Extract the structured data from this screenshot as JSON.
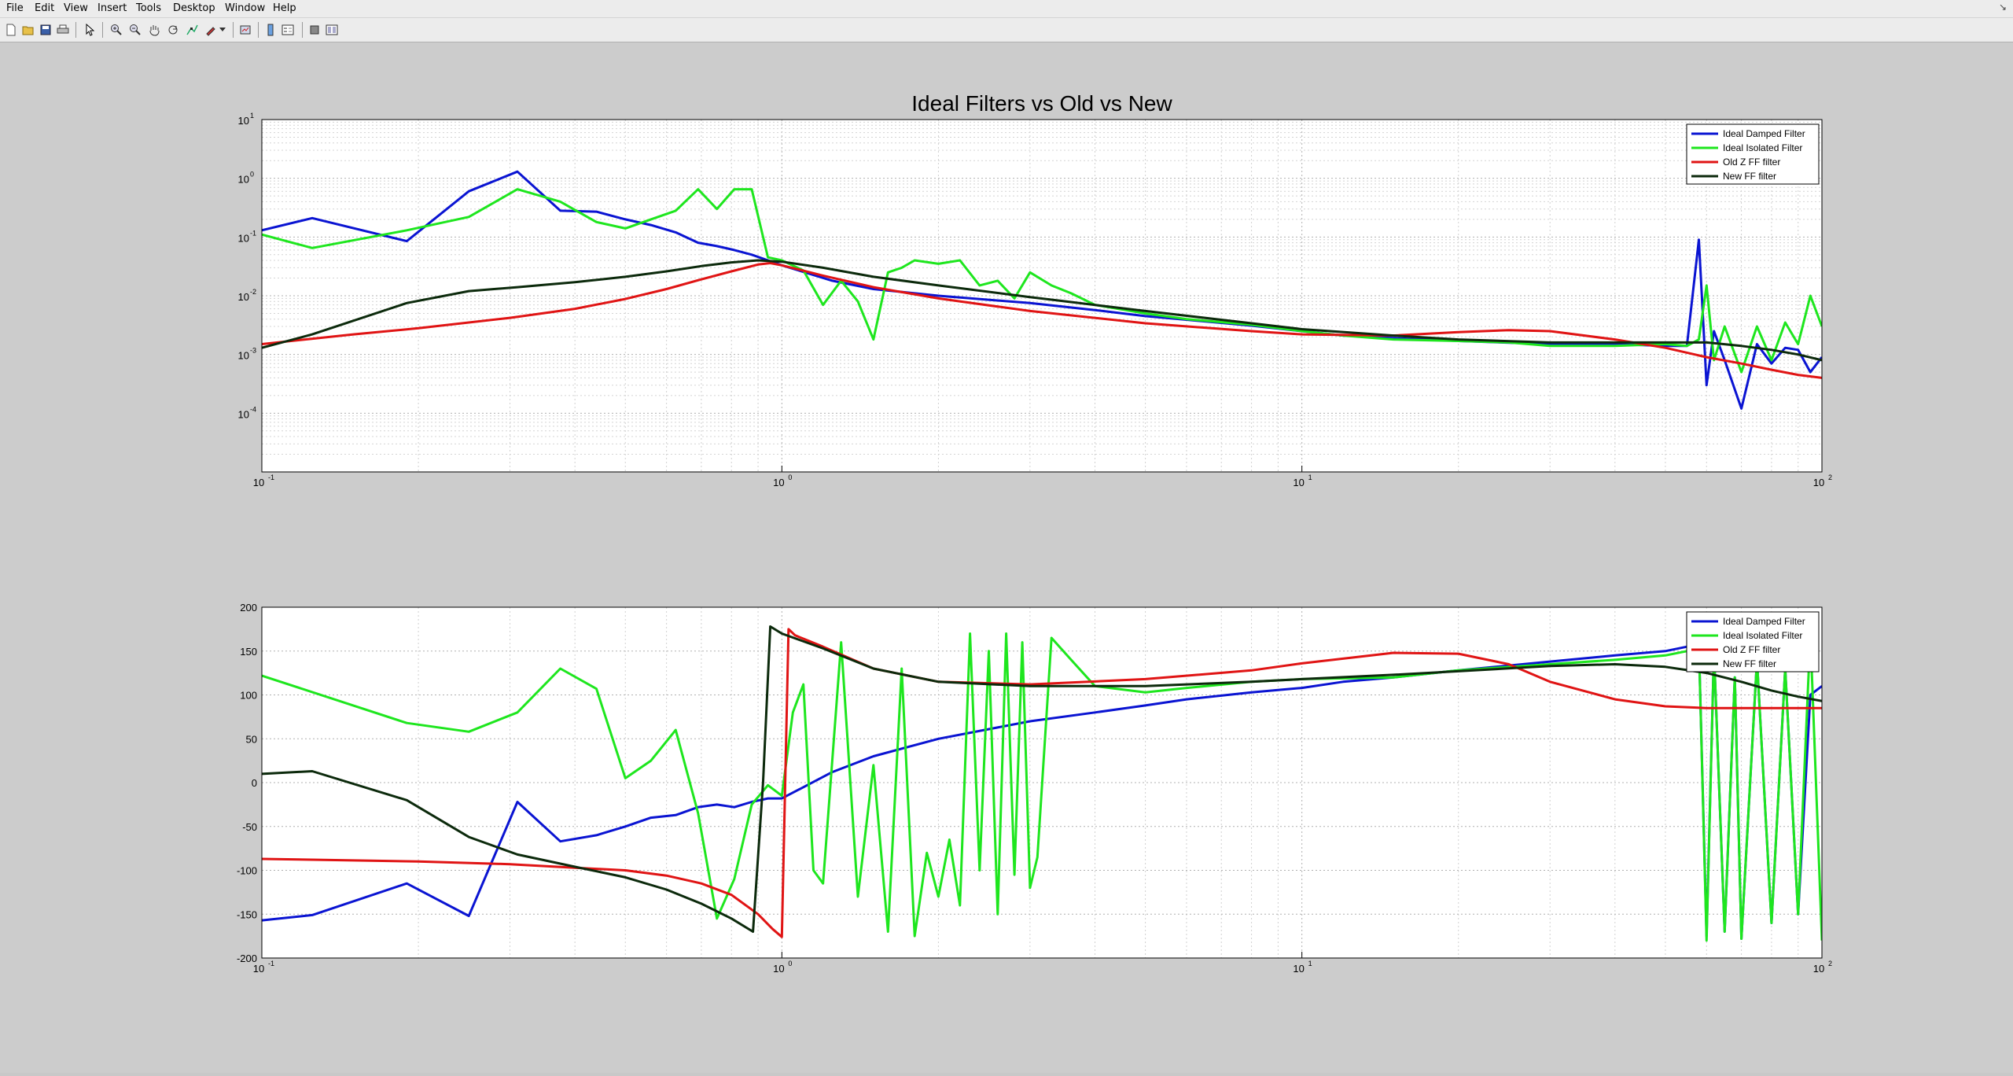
{
  "menubar": {
    "items": [
      "File",
      "Edit",
      "View",
      "Insert",
      "Tools",
      "Desktop",
      "Window",
      "Help"
    ],
    "undock_symbol": "↘"
  },
  "toolbar": {
    "icons": [
      "new-figure-icon",
      "open-file-icon",
      "save-icon",
      "print-icon",
      "select-arrow-icon",
      "zoom-in-icon",
      "zoom-out-icon",
      "pan-hand-icon",
      "rotate-3d-icon",
      "data-cursor-icon",
      "brush-icon",
      "brush-dropdown-icon",
      "link-plot-icon",
      "colorbar-icon",
      "legend-icon",
      "hide-plot-tools-icon",
      "show-plot-tools-icon"
    ]
  },
  "figure": {
    "title": "Ideal Filters vs Old vs New"
  },
  "colors": {
    "ideal_damped": "#0a14d2",
    "ideal_isolated": "#1ee61e",
    "old_z": "#e01414",
    "new_ff": "#0c2a0c"
  },
  "chart_data": [
    {
      "type": "line",
      "xscale": "log",
      "yscale": "log",
      "xlim": [
        0.1,
        100
      ],
      "ylim": [
        1e-05,
        10
      ],
      "grid": true,
      "legend_position": "top-right",
      "xticks": [
        {
          "base": "10",
          "exp": "-1"
        },
        {
          "base": "10",
          "exp": "0"
        },
        {
          "base": "10",
          "exp": "1"
        },
        {
          "base": "10",
          "exp": "2"
        }
      ],
      "yticks": [
        {
          "base": "10",
          "exp": "1"
        },
        {
          "base": "10",
          "exp": "0"
        },
        {
          "base": "10",
          "exp": "-1"
        },
        {
          "base": "10",
          "exp": "-2"
        },
        {
          "base": "10",
          "exp": "-3"
        },
        {
          "base": "10",
          "exp": "-4"
        }
      ],
      "series": [
        {
          "name": "Ideal Damped Filter",
          "color": "#0a14d2",
          "x": [
            0.1,
            0.125,
            0.19,
            0.25,
            0.31,
            0.375,
            0.44,
            0.5,
            0.56,
            0.625,
            0.69,
            0.75,
            0.81,
            0.875,
            0.94,
            1.0,
            1.25,
            1.5,
            2,
            3,
            4,
            5,
            6,
            8,
            10,
            12,
            15,
            20,
            30,
            40,
            50,
            55,
            58,
            60,
            62,
            65,
            70,
            75,
            80,
            85,
            90,
            95,
            100
          ],
          "y": [
            0.13,
            0.21,
            0.085,
            0.6,
            1.3,
            0.28,
            0.27,
            0.2,
            0.16,
            0.12,
            0.08,
            0.07,
            0.06,
            0.05,
            0.04,
            0.033,
            0.018,
            0.013,
            0.01,
            0.0075,
            0.0057,
            0.0045,
            0.0039,
            0.0031,
            0.0025,
            0.0021,
            0.0019,
            0.0017,
            0.0015,
            0.0015,
            0.0014,
            0.0014,
            0.09,
            0.0003,
            0.0025,
            0.0008,
            0.00012,
            0.0015,
            0.0007,
            0.0013,
            0.0012,
            0.0005,
            0.0009
          ]
        },
        {
          "name": "Ideal Isolated Filter",
          "color": "#1ee61e",
          "x": [
            0.1,
            0.125,
            0.19,
            0.25,
            0.31,
            0.375,
            0.44,
            0.5,
            0.56,
            0.625,
            0.69,
            0.75,
            0.81,
            0.875,
            0.94,
            1.0,
            1.1,
            1.2,
            1.3,
            1.4,
            1.5,
            1.6,
            1.7,
            1.8,
            2.0,
            2.2,
            2.4,
            2.6,
            2.8,
            3.0,
            3.3,
            3.6,
            4.0,
            5,
            6,
            8,
            10,
            12,
            15,
            20,
            25,
            30,
            40,
            50,
            55,
            58,
            60,
            62,
            65,
            70,
            75,
            80,
            85,
            90,
            95,
            100
          ],
          "y": [
            0.11,
            0.065,
            0.13,
            0.22,
            0.65,
            0.4,
            0.18,
            0.14,
            0.2,
            0.28,
            0.65,
            0.3,
            0.65,
            0.65,
            0.045,
            0.04,
            0.027,
            0.007,
            0.018,
            0.008,
            0.0018,
            0.025,
            0.03,
            0.04,
            0.035,
            0.04,
            0.015,
            0.018,
            0.009,
            0.025,
            0.015,
            0.011,
            0.007,
            0.005,
            0.004,
            0.0032,
            0.0025,
            0.0021,
            0.0018,
            0.0017,
            0.0016,
            0.0014,
            0.0014,
            0.0015,
            0.0014,
            0.0018,
            0.015,
            0.0008,
            0.003,
            0.0005,
            0.003,
            0.0008,
            0.0035,
            0.0015,
            0.01,
            0.003
          ]
        },
        {
          "name": "Old Z FF filter",
          "color": "#e01414",
          "x": [
            0.1,
            0.15,
            0.2,
            0.3,
            0.4,
            0.5,
            0.6,
            0.7,
            0.8,
            0.9,
            0.95,
            1.0,
            1.2,
            1.5,
            2,
            3,
            5,
            8,
            10,
            15,
            20,
            25,
            30,
            40,
            50,
            60,
            70,
            80,
            90,
            100
          ],
          "y": [
            0.0015,
            0.0022,
            0.0028,
            0.0042,
            0.006,
            0.0088,
            0.013,
            0.019,
            0.026,
            0.034,
            0.036,
            0.033,
            0.022,
            0.014,
            0.009,
            0.0055,
            0.0034,
            0.0025,
            0.0022,
            0.0021,
            0.0024,
            0.0026,
            0.0025,
            0.0018,
            0.0013,
            0.0009,
            0.0007,
            0.00055,
            0.00045,
            0.0004
          ]
        },
        {
          "name": "New FF filter",
          "color": "#0c2a0c",
          "x": [
            0.1,
            0.125,
            0.19,
            0.25,
            0.31,
            0.4,
            0.5,
            0.6,
            0.7,
            0.8,
            0.9,
            1.0,
            1.2,
            1.5,
            2,
            3,
            5,
            8,
            10,
            15,
            20,
            30,
            50,
            60,
            70,
            80,
            90,
            100
          ],
          "y": [
            0.0013,
            0.0022,
            0.0075,
            0.012,
            0.014,
            0.017,
            0.021,
            0.026,
            0.032,
            0.037,
            0.04,
            0.038,
            0.03,
            0.021,
            0.015,
            0.0095,
            0.0055,
            0.0034,
            0.0027,
            0.0021,
            0.0018,
            0.0016,
            0.0016,
            0.0016,
            0.0014,
            0.0012,
            0.001,
            0.0008
          ]
        }
      ]
    },
    {
      "type": "line",
      "xscale": "log",
      "xlim": [
        0.1,
        100
      ],
      "ylim": [
        -200,
        200
      ],
      "grid": true,
      "legend_position": "top-right",
      "xticks": [
        {
          "base": "10",
          "exp": "-1"
        },
        {
          "base": "10",
          "exp": "0"
        },
        {
          "base": "10",
          "exp": "1"
        },
        {
          "base": "10",
          "exp": "2"
        }
      ],
      "yticks": [
        "200",
        "150",
        "100",
        "50",
        "0",
        "-50",
        "-100",
        "-150",
        "-200"
      ],
      "ytick_values": [
        200,
        150,
        100,
        50,
        0,
        -50,
        -100,
        -150,
        -200
      ],
      "series": [
        {
          "name": "Ideal Damped Filter",
          "color": "#0a14d2",
          "x": [
            0.1,
            0.125,
            0.19,
            0.25,
            0.31,
            0.375,
            0.44,
            0.5,
            0.56,
            0.625,
            0.69,
            0.75,
            0.81,
            0.875,
            0.94,
            1.0,
            1.25,
            1.5,
            2,
            3,
            4,
            5,
            6,
            8,
            10,
            12,
            15,
            20,
            30,
            40,
            50,
            55,
            58,
            60,
            62,
            65,
            68,
            70,
            75,
            80,
            85,
            90,
            95,
            100
          ],
          "y": [
            -157,
            -151,
            -115,
            -152,
            -22,
            -67,
            -60,
            -50,
            -40,
            -37,
            -28,
            -25,
            -28,
            -22,
            -18,
            -18,
            12,
            30,
            50,
            70,
            80,
            88,
            95,
            103,
            108,
            115,
            120,
            128,
            138,
            145,
            150,
            155,
            160,
            -175,
            150,
            -170,
            120,
            -178,
            140,
            -160,
            130,
            -150,
            100,
            110
          ]
        },
        {
          "name": "Ideal Isolated Filter",
          "color": "#1ee61e",
          "x": [
            0.1,
            0.19,
            0.25,
            0.31,
            0.375,
            0.44,
            0.5,
            0.56,
            0.625,
            0.69,
            0.75,
            0.81,
            0.875,
            0.94,
            1.0,
            1.05,
            1.1,
            1.15,
            1.2,
            1.3,
            1.4,
            1.5,
            1.6,
            1.7,
            1.8,
            1.9,
            2.0,
            2.1,
            2.2,
            2.3,
            2.4,
            2.5,
            2.6,
            2.7,
            2.8,
            2.9,
            3.0,
            3.1,
            3.3,
            3.6,
            4.0,
            5,
            6,
            8,
            10,
            15,
            20,
            30,
            40,
            50,
            55,
            58,
            60,
            62,
            65,
            68,
            70,
            75,
            80,
            85,
            90,
            95,
            100
          ],
          "y": [
            122,
            68,
            58,
            80,
            130,
            107,
            5,
            25,
            60,
            -35,
            -155,
            -110,
            -25,
            -3,
            -15,
            80,
            112,
            -100,
            -115,
            160,
            -130,
            20,
            -170,
            130,
            -175,
            -80,
            -130,
            -65,
            -140,
            170,
            -100,
            150,
            -150,
            170,
            -105,
            160,
            -120,
            -85,
            165,
            140,
            110,
            103,
            108,
            115,
            118,
            120,
            128,
            135,
            140,
            145,
            150,
            160,
            -180,
            150,
            -170,
            120,
            -178,
            140,
            -160,
            130,
            -150,
            170,
            -180
          ]
        },
        {
          "name": "Old Z FF filter",
          "color": "#e01414",
          "x": [
            0.1,
            0.2,
            0.3,
            0.4,
            0.5,
            0.6,
            0.7,
            0.8,
            0.9,
            0.96,
            1.0,
            1.03,
            1.06,
            1.2,
            1.5,
            2,
            3,
            5,
            8,
            10,
            15,
            20,
            25,
            30,
            40,
            50,
            60,
            70,
            80,
            90,
            100
          ],
          "y": [
            -87,
            -90,
            -93,
            -97,
            -100,
            -106,
            -115,
            -128,
            -150,
            -167,
            -176,
            175,
            168,
            155,
            130,
            115,
            112,
            118,
            128,
            136,
            148,
            147,
            135,
            115,
            95,
            87,
            85,
            85,
            85,
            85,
            85
          ]
        },
        {
          "name": "New FF filter",
          "color": "#0c2a0c",
          "x": [
            0.1,
            0.125,
            0.19,
            0.25,
            0.31,
            0.4,
            0.5,
            0.6,
            0.7,
            0.8,
            0.88,
            0.92,
            0.95,
            1.0,
            1.2,
            1.5,
            2,
            3,
            5,
            8,
            10,
            15,
            20,
            30,
            40,
            50,
            60,
            70,
            80,
            90,
            100
          ],
          "y": [
            10,
            13,
            -20,
            -62,
            -82,
            -96,
            -108,
            -122,
            -138,
            -155,
            -170,
            0,
            178,
            170,
            153,
            130,
            115,
            110,
            110,
            115,
            118,
            123,
            127,
            133,
            135,
            132,
            125,
            115,
            105,
            98,
            93
          ]
        }
      ]
    }
  ]
}
